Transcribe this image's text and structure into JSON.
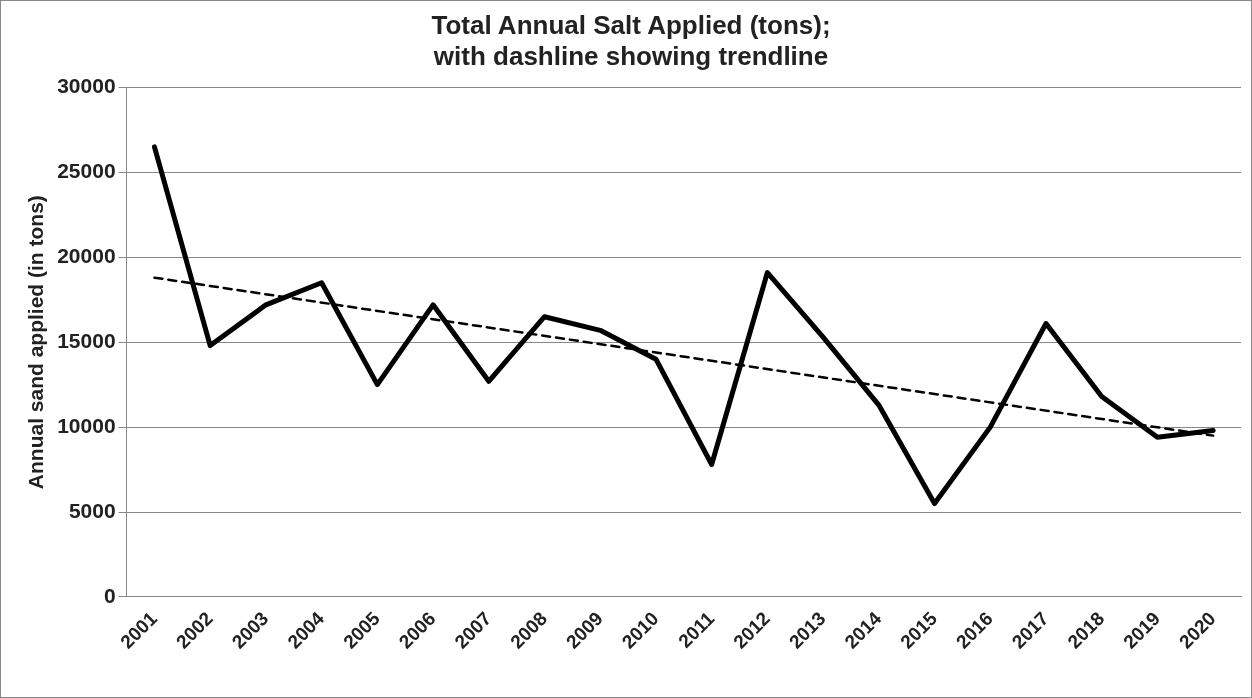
{
  "chart_data": {
    "type": "line",
    "title": "Total Annual Salt Applied (tons);\nwith dashline showing trendline",
    "ylabel": "Annual sand applied (in tons)",
    "categories": [
      "2001",
      "2002",
      "2003",
      "2004",
      "2005",
      "2006",
      "2007",
      "2008",
      "2009",
      "2010",
      "2011",
      "2012",
      "2013",
      "2014",
      "2015",
      "2016",
      "2017",
      "2018",
      "2019",
      "2020"
    ],
    "series": [
      {
        "color": "#000000",
        "line_style": "solid",
        "values": [
          26500,
          14800,
          17200,
          18500,
          12500,
          17200,
          12700,
          16500,
          15700,
          14000,
          7800,
          19100,
          15300,
          11300,
          5500,
          10000,
          16100,
          11800,
          9400,
          9800
        ]
      },
      {
        "type": "line",
        "color": "#000000",
        "line_style": "dashed",
        "values": [
          18800,
          null,
          null,
          null,
          null,
          null,
          null,
          null,
          null,
          null,
          null,
          null,
          null,
          null,
          null,
          null,
          null,
          null,
          null,
          9500
        ]
      }
    ],
    "ylim": [
      0,
      30000
    ],
    "yticks": [
      0,
      5000,
      10000,
      15000,
      20000,
      25000,
      30000
    ],
    "grid": "y",
    "legend": false,
    "marker": "none"
  }
}
